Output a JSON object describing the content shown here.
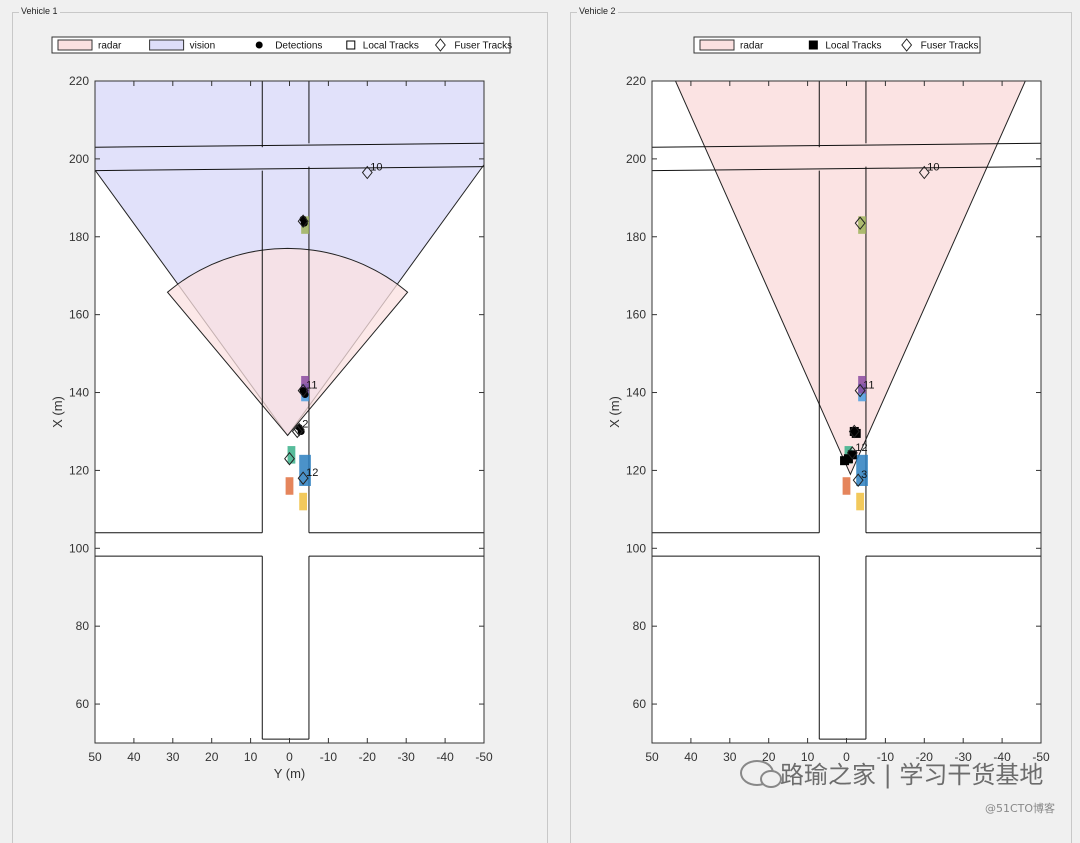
{
  "watermark": {
    "text": "路瑜之家 | 学习干货基地",
    "sub": "@51CTO博客",
    "icon": "wechat-icon"
  },
  "colors": {
    "radar_fill": "#fbe0e0",
    "vision_fill": "#dedefa",
    "overlap_fill": "#e2cae4",
    "road": "#111111",
    "vehicles": [
      "#4a9ee0",
      "#9fb35a",
      "#8a4aa0",
      "#3ab08a",
      "#2b7fc0",
      "#e07040",
      "#f0c040"
    ]
  },
  "chart_data": [
    {
      "type": "scatter",
      "title": "",
      "panel_title": "Vehicle 1",
      "xlabel": "Y (m)",
      "ylabel": "X (m)",
      "xlim": [
        50,
        -50
      ],
      "ylim": [
        50,
        220
      ],
      "xticks": [
        "50",
        "40",
        "30",
        "20",
        "10",
        "0",
        "-10",
        "-20",
        "-30",
        "-40",
        "-50"
      ],
      "yticks": [
        "60",
        "80",
        "100",
        "120",
        "140",
        "160",
        "180",
        "200",
        "220"
      ],
      "legend": [
        "radar",
        "vision",
        "Detections",
        "Local Tracks",
        "Fuser Tracks"
      ],
      "legend_position": "top",
      "coverage": [
        {
          "name": "vision",
          "origin": [
            0.5,
            129
          ],
          "range": 108,
          "half_angle_deg": 36
        },
        {
          "name": "radar",
          "origin": [
            0.5,
            129
          ],
          "range": 48,
          "half_angle_deg": 40
        }
      ],
      "vehicles": [
        {
          "y": -4,
          "x": 140,
          "len": 4.5,
          "wid": 2,
          "color": "#4a9ee0"
        },
        {
          "y": -4,
          "x": 183,
          "len": 4.5,
          "wid": 2,
          "color": "#9fb35a"
        },
        {
          "y": -4,
          "x": 142,
          "len": 4.5,
          "wid": 2,
          "color": "#8a4aa0"
        },
        {
          "y": -0.5,
          "x": 124,
          "len": 4.5,
          "wid": 2,
          "color": "#3ab08a"
        },
        {
          "y": -4,
          "x": 120,
          "len": 8,
          "wid": 3,
          "color": "#2b7fc0"
        },
        {
          "y": 0,
          "x": 116,
          "len": 4.5,
          "wid": 2,
          "color": "#e07040"
        },
        {
          "y": -3.5,
          "x": 112,
          "len": 4.5,
          "wid": 2,
          "color": "#f0c040"
        }
      ],
      "detections": [
        {
          "y": -3.5,
          "x": 184.5
        },
        {
          "y": -3.8,
          "x": 183.5
        },
        {
          "y": -3.5,
          "x": 140.5
        },
        {
          "y": -4,
          "x": 139.5
        },
        {
          "y": -2.5,
          "x": 131
        },
        {
          "y": -3,
          "x": 130
        }
      ],
      "local_tracks": [],
      "fuser_tracks": [
        {
          "y": -20,
          "x": 196.5,
          "label": "10"
        },
        {
          "y": -3.5,
          "x": 184
        },
        {
          "y": -3.5,
          "x": 140.5,
          "label": "11"
        },
        {
          "y": -2.5,
          "x": 130.5,
          "label": "2"
        },
        {
          "y": -2,
          "x": 130
        },
        {
          "y": 0,
          "x": 123
        },
        {
          "y": -3.5,
          "x": 118,
          "label": "12"
        }
      ]
    },
    {
      "type": "scatter",
      "title": "",
      "panel_title": "Vehicle 2",
      "xlabel": "",
      "ylabel": "X (m)",
      "xlim": [
        50,
        -50
      ],
      "ylim": [
        50,
        220
      ],
      "xticks": [
        "50",
        "40",
        "30",
        "20",
        "10",
        "0",
        "-10",
        "-20",
        "-30",
        "-40",
        "-50"
      ],
      "yticks": [
        "60",
        "80",
        "100",
        "120",
        "140",
        "160",
        "180",
        "200",
        "220"
      ],
      "legend": [
        "radar",
        "Local Tracks",
        "Fuser Tracks"
      ],
      "legend_position": "top",
      "coverage": [
        {
          "name": "radar",
          "origin": [
            -1,
            119
          ],
          "range": 130,
          "half_angle_deg": 24
        }
      ],
      "vehicles": [
        {
          "y": -4,
          "x": 140,
          "len": 4.5,
          "wid": 2,
          "color": "#4a9ee0"
        },
        {
          "y": -4,
          "x": 183,
          "len": 4.5,
          "wid": 2,
          "color": "#9fb35a"
        },
        {
          "y": -4,
          "x": 142,
          "len": 4.5,
          "wid": 2,
          "color": "#8a4aa0"
        },
        {
          "y": -0.5,
          "x": 124,
          "len": 4.5,
          "wid": 2,
          "color": "#3ab08a"
        },
        {
          "y": -4,
          "x": 120,
          "len": 8,
          "wid": 3,
          "color": "#2b7fc0"
        },
        {
          "y": 0,
          "x": 116,
          "len": 4.5,
          "wid": 2,
          "color": "#e07040"
        },
        {
          "y": -3.5,
          "x": 112,
          "len": 4.5,
          "wid": 2,
          "color": "#f0c040"
        }
      ],
      "detections": [],
      "local_tracks": [
        {
          "y": -2,
          "x": 130
        },
        {
          "y": -2.5,
          "x": 129.5
        },
        {
          "y": -1.5,
          "x": 124
        },
        {
          "y": -0.5,
          "x": 123
        },
        {
          "y": 0.5,
          "x": 122.5
        }
      ],
      "fuser_tracks": [
        {
          "y": -20,
          "x": 196.5,
          "label": "10"
        },
        {
          "y": -3.5,
          "x": 183.5
        },
        {
          "y": -3.5,
          "x": 140.5,
          "label": "11"
        },
        {
          "y": -2,
          "x": 130
        },
        {
          "y": -1.5,
          "x": 124.5,
          "label": "12"
        },
        {
          "y": -3,
          "x": 117.5,
          "label": "3"
        }
      ]
    }
  ]
}
